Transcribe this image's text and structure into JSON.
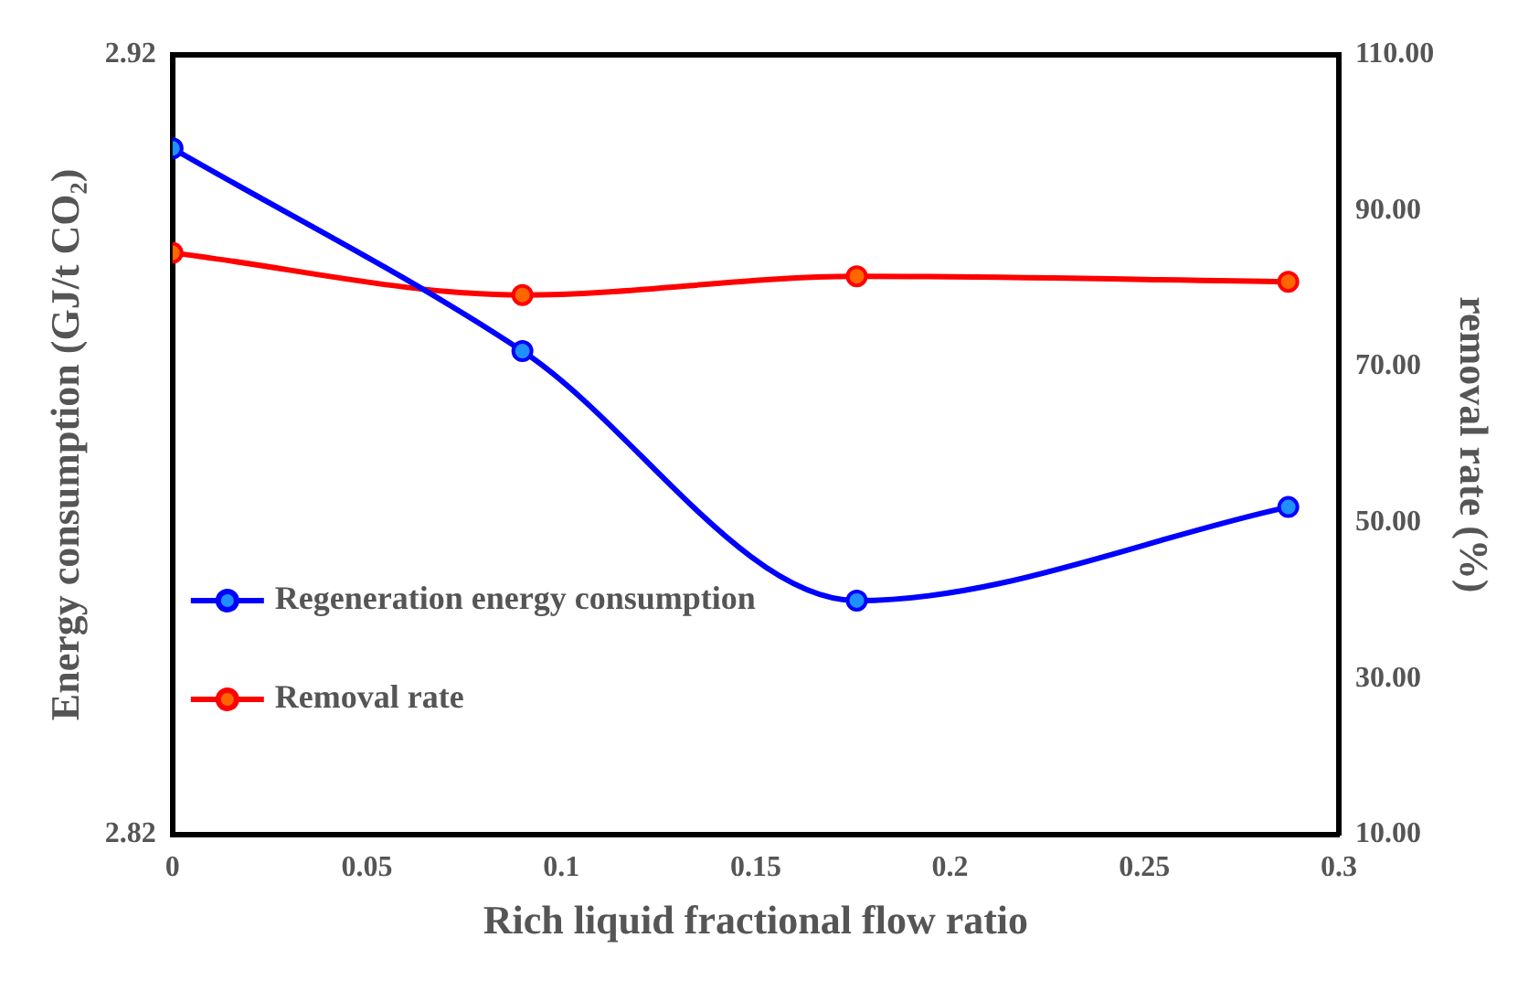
{
  "chart_data": {
    "type": "line",
    "xlabel": "Rich liquid fractional flow ratio",
    "ylabel": "Energy consumption (GJ/t CO₂)",
    "y2label": "removal rate (%)",
    "x": [
      0,
      0.09,
      0.176,
      0.287
    ],
    "series": [
      {
        "name": "Regeneration energy consumption",
        "color": "#0000ff",
        "values": [
          2.908,
          2.882,
          2.85,
          2.862
        ]
      },
      {
        "name": "Removal rate",
        "color": "#ff0000",
        "axis": "y2",
        "values": [
          84.6,
          79.2,
          81.6,
          80.9
        ]
      }
    ],
    "xlim": [
      0,
      0.3
    ],
    "xticks": [
      0,
      0.05,
      0.1,
      0.15,
      0.2,
      0.25,
      0.3
    ],
    "ylim": [
      2.82,
      2.92
    ],
    "yticks": [
      2.82,
      2.92
    ],
    "y2lim": [
      10,
      110
    ],
    "y2ticks": [
      {
        "value": 10,
        "label": "10.00"
      },
      {
        "value": 30,
        "label": "30.00"
      },
      {
        "value": 50,
        "label": "50.00"
      },
      {
        "value": 70,
        "label": "70.00"
      },
      {
        "value": 90,
        "label": "90.00"
      },
      {
        "value": 110,
        "label": "110.00"
      }
    ],
    "legend": "left",
    "marker": "circle",
    "line_style": "solid"
  }
}
